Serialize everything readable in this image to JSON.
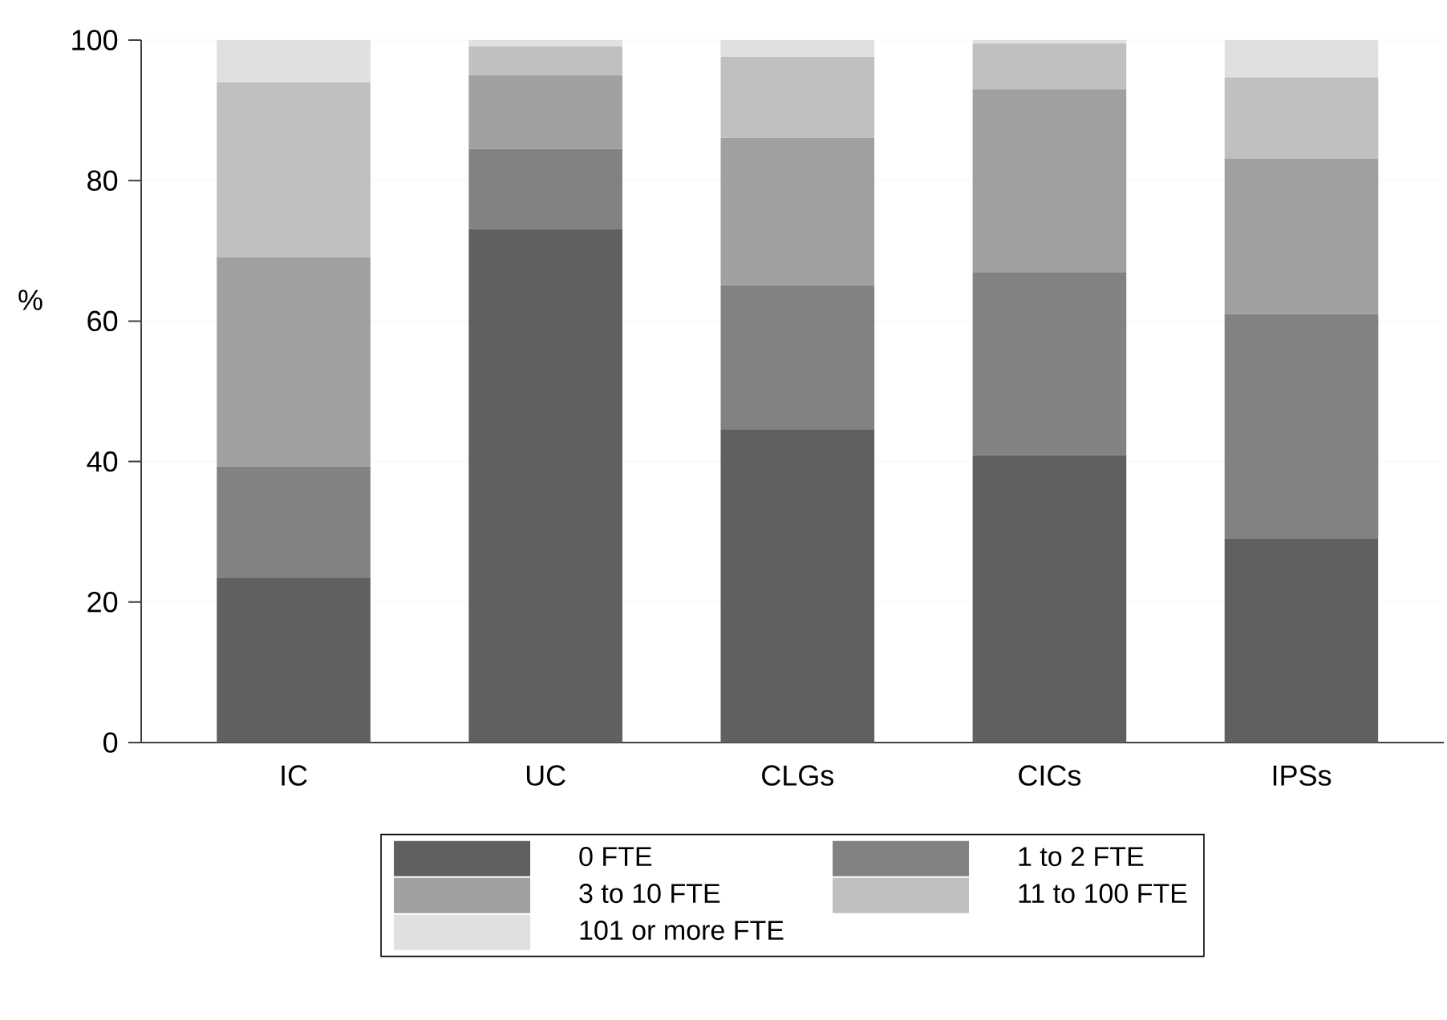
{
  "chart_data": {
    "type": "bar",
    "stacked": true,
    "ylabel": "%",
    "categories": [
      "IC",
      "UC",
      "CLGs",
      "CICs",
      "IPSs"
    ],
    "series": [
      {
        "name": "0 FTE",
        "color": "#606060",
        "values": [
          23.4,
          73.1,
          44.6,
          40.9,
          29.0
        ]
      },
      {
        "name": "1 to 2 FTE",
        "color": "#828282",
        "values": [
          15.9,
          11.4,
          20.5,
          26.0,
          32.0
        ]
      },
      {
        "name": "3 to 10 FTE",
        "color": "#a0a0a0",
        "values": [
          29.8,
          10.5,
          21.0,
          26.1,
          22.1
        ]
      },
      {
        "name": "11 to 100 FTE",
        "color": "#c0c0c0",
        "values": [
          24.9,
          4.1,
          11.5,
          6.5,
          11.6
        ]
      },
      {
        "name": "101 or more FTE",
        "color": "#e0e0e0",
        "values": [
          6.0,
          0.9,
          2.4,
          0.5,
          5.3
        ]
      }
    ],
    "ylim": [
      0,
      100
    ],
    "yticks": [
      0,
      20,
      40,
      60,
      80,
      100
    ],
    "grid": "y",
    "legend": "bottom"
  }
}
